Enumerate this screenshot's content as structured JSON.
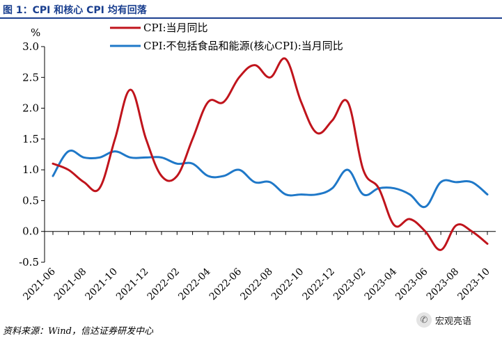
{
  "header": {
    "title": "图 1：CPI 和核心 CPI 均有回落"
  },
  "footer": {
    "source": "资料来源：Wind，信达证券研发中心"
  },
  "watermark": {
    "text": "宏观亮语",
    "icon": "wechat-icon"
  },
  "chart_data": {
    "type": "line",
    "title": "",
    "xlabel": "",
    "ylabel": "%",
    "ylim": [
      -0.5,
      3.0
    ],
    "yticks": [
      -0.5,
      0.0,
      0.5,
      1.0,
      1.5,
      2.0,
      2.5,
      3.0
    ],
    "ytick_labels": [
      "-0.5",
      "0.0",
      "0.5",
      "1.0",
      "1.5",
      "2.0",
      "2.5",
      "3.0"
    ],
    "grid": false,
    "legend_position": "top",
    "x": [
      "2021-06",
      "2021-07",
      "2021-08",
      "2021-09",
      "2021-10",
      "2021-11",
      "2021-12",
      "2022-01",
      "2022-02",
      "2022-03",
      "2022-04",
      "2022-05",
      "2022-06",
      "2022-07",
      "2022-08",
      "2022-09",
      "2022-10",
      "2022-11",
      "2022-12",
      "2023-01",
      "2023-02",
      "2023-03",
      "2023-04",
      "2023-05",
      "2023-06",
      "2023-07",
      "2023-08",
      "2023-09",
      "2023-10"
    ],
    "xtick_labels": [
      "2021-06",
      "2021-08",
      "2021-10",
      "2021-12",
      "2022-02",
      "2022-04",
      "2022-06",
      "2022-08",
      "2022-10",
      "2022-12",
      "2023-02",
      "2023-04",
      "2023-06",
      "2023-08",
      "2023-10"
    ],
    "series": [
      {
        "name": "CPI:当月同比",
        "color": "#c0141c",
        "values": [
          1.1,
          1.0,
          0.8,
          0.7,
          1.5,
          2.3,
          1.5,
          0.9,
          0.9,
          1.5,
          2.1,
          2.1,
          2.5,
          2.7,
          2.5,
          2.8,
          2.1,
          1.6,
          1.8,
          2.1,
          1.0,
          0.7,
          0.1,
          0.2,
          0.0,
          -0.3,
          0.1,
          0.0,
          -0.2
        ]
      },
      {
        "name": "CPI:不包括食品和能源(核心CPI):当月同比",
        "color": "#1f78c8",
        "values": [
          0.9,
          1.3,
          1.2,
          1.2,
          1.3,
          1.2,
          1.2,
          1.2,
          1.1,
          1.1,
          0.9,
          0.9,
          1.0,
          0.8,
          0.8,
          0.6,
          0.6,
          0.6,
          0.7,
          1.0,
          0.6,
          0.7,
          0.7,
          0.6,
          0.4,
          0.8,
          0.8,
          0.8,
          0.6
        ]
      }
    ]
  }
}
